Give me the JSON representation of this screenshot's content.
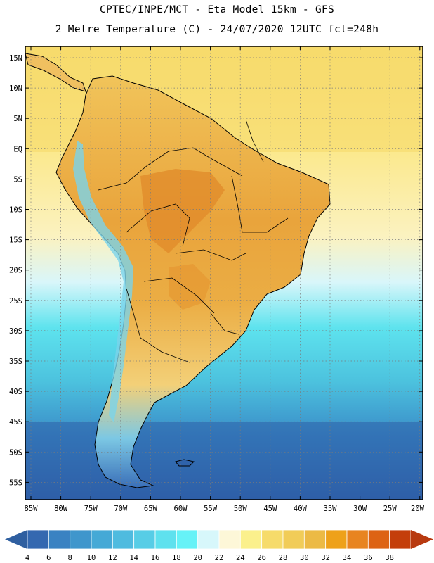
{
  "header": {
    "line1": "CPTEC/INPE/MCT -  Eta Model 15km - GFS",
    "line2": "2 Metre Temperature (C) - 24/07/2020 12UTC fct=248h"
  },
  "map": {
    "lat_labels": [
      "15N",
      "10N",
      "5N",
      "EQ",
      "5S",
      "10S",
      "15S",
      "20S",
      "25S",
      "30S",
      "35S",
      "40S",
      "45S",
      "50S",
      "55S"
    ],
    "lon_labels": [
      "85W",
      "80W",
      "75W",
      "70W",
      "65W",
      "60W",
      "55W",
      "50W",
      "45W",
      "40W",
      "35W",
      "30W",
      "25W",
      "20W"
    ],
    "colors": {
      "ocean_cold": "#2f63ab",
      "ocean_cool": "#3a89c6",
      "ocean_mid": "#47b0d9",
      "ocean_warm": "#5cd4e6",
      "ocean_tropical": "#f6e07a",
      "land_hot": "#e8a23a",
      "land_warm": "#f0c35a",
      "border": "#000000"
    }
  },
  "legend": {
    "labels": [
      "4",
      "6",
      "8",
      "10",
      "12",
      "14",
      "16",
      "18",
      "20",
      "22",
      "24",
      "26",
      "28",
      "30",
      "32",
      "34",
      "36",
      "38"
    ],
    "colors": [
      "#3468b0",
      "#3a82c2",
      "#3f96cc",
      "#45a9d6",
      "#4fbbdf",
      "#57cde6",
      "#5fe1ee",
      "#66f2f7",
      "#d7f7fb",
      "#fdf7d8",
      "#fbf08c",
      "#f6db6a",
      "#f1cc58",
      "#ecba45",
      "#eea11a",
      "#e88420",
      "#dd6314",
      "#c43e0a"
    ],
    "low_arrow_color": "#2f5fa0",
    "high_arrow_color": "#b83a10"
  }
}
